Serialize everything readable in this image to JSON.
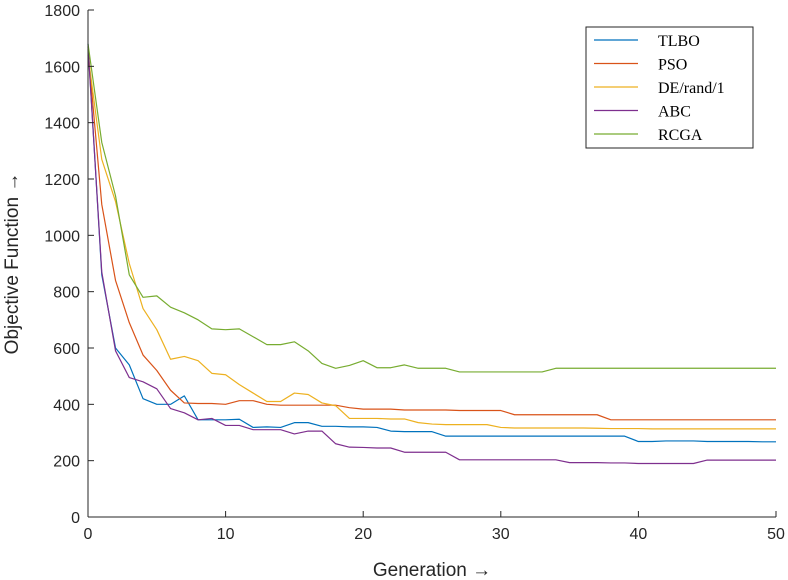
{
  "chart_data": {
    "type": "line",
    "title": "",
    "xlabel": "Generation →",
    "ylabel": "Objective Function →",
    "xlim": [
      0,
      50
    ],
    "ylim": [
      0,
      1800
    ],
    "xticks": [
      0,
      10,
      20,
      30,
      40,
      50
    ],
    "yticks": [
      0,
      200,
      400,
      600,
      800,
      1000,
      1200,
      1400,
      1600,
      1800
    ],
    "grid": false,
    "legend_position": "top-right",
    "x": [
      0,
      1,
      2,
      3,
      4,
      5,
      6,
      7,
      8,
      9,
      10,
      11,
      12,
      13,
      14,
      15,
      16,
      17,
      18,
      19,
      20,
      21,
      22,
      23,
      24,
      25,
      26,
      27,
      28,
      29,
      30,
      31,
      32,
      33,
      34,
      35,
      36,
      37,
      38,
      39,
      40,
      41,
      42,
      43,
      44,
      45,
      46,
      47,
      48,
      49,
      50
    ],
    "series": [
      {
        "name": "TLBO",
        "color": "#0072BD",
        "values": [
          1680,
          860,
          600,
          540,
          420,
          400,
          400,
          430,
          345,
          345,
          345,
          347,
          318,
          320,
          318,
          335,
          335,
          322,
          322,
          320,
          320,
          318,
          305,
          303,
          303,
          303,
          287,
          287,
          287,
          287,
          287,
          287,
          287,
          287,
          287,
          287,
          287,
          287,
          287,
          287,
          268,
          268,
          270,
          270,
          270,
          268,
          268,
          268,
          268,
          267,
          267
        ]
      },
      {
        "name": "PSO",
        "color": "#D95319",
        "values": [
          1660,
          1110,
          840,
          690,
          575,
          520,
          450,
          405,
          403,
          403,
          400,
          413,
          413,
          400,
          397,
          397,
          397,
          397,
          397,
          388,
          383,
          383,
          383,
          380,
          380,
          380,
          380,
          378,
          378,
          378,
          378,
          363,
          363,
          363,
          363,
          363,
          363,
          363,
          345,
          345,
          345,
          345,
          345,
          345,
          345,
          345,
          345,
          345,
          345,
          345,
          345
        ]
      },
      {
        "name": "DE/rand/1",
        "color": "#EDB120",
        "values": [
          1640,
          1270,
          1120,
          900,
          740,
          665,
          560,
          570,
          555,
          510,
          505,
          470,
          440,
          410,
          410,
          440,
          435,
          405,
          395,
          350,
          350,
          350,
          348,
          348,
          335,
          330,
          328,
          328,
          328,
          328,
          318,
          316,
          316,
          316,
          316,
          316,
          316,
          315,
          314,
          314,
          314,
          313,
          313,
          313,
          313,
          313,
          313,
          313,
          313,
          313,
          313
        ]
      },
      {
        "name": "ABC",
        "color": "#7E2F8E",
        "values": [
          1670,
          870,
          590,
          495,
          480,
          455,
          385,
          370,
          345,
          350,
          325,
          325,
          310,
          310,
          310,
          295,
          305,
          305,
          260,
          248,
          247,
          245,
          245,
          230,
          230,
          230,
          230,
          203,
          203,
          203,
          203,
          203,
          203,
          203,
          203,
          193,
          193,
          193,
          192,
          192,
          190,
          190,
          190,
          190,
          190,
          202,
          202,
          202,
          202,
          202,
          202
        ]
      },
      {
        "name": "RCGA",
        "color": "#77AC30",
        "values": [
          1680,
          1330,
          1140,
          860,
          780,
          785,
          745,
          725,
          700,
          668,
          665,
          668,
          640,
          612,
          612,
          622,
          590,
          545,
          528,
          538,
          555,
          530,
          530,
          540,
          528,
          528,
          528,
          515,
          515,
          515,
          515,
          515,
          515,
          515,
          528,
          528,
          528,
          528,
          528,
          528,
          528,
          528,
          528,
          528,
          528,
          528,
          528,
          528,
          528,
          528,
          528
        ]
      }
    ]
  }
}
